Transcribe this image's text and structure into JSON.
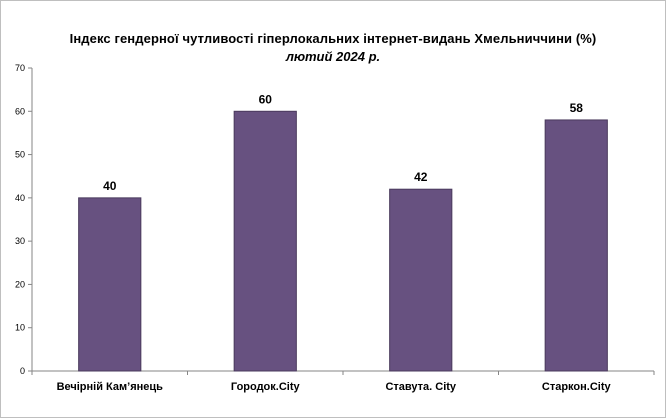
{
  "chart_data": {
    "type": "bar",
    "title": "Індекс гендерної чутливості гіперлокальних інтернет-видань Хмельниччини (%)",
    "subtitle": "лютий 2024 р.",
    "categories": [
      "Вечірній Кам’янець",
      "Городок.City",
      "Ставута. City",
      "Старкон.City"
    ],
    "values": [
      40,
      60,
      42,
      58
    ],
    "data_labels": [
      "40",
      "60",
      "42",
      "58"
    ],
    "yticks": [
      "0",
      "10",
      "20",
      "30",
      "40",
      "50",
      "60",
      "70"
    ],
    "ylim": [
      0,
      70
    ],
    "xlabel": "",
    "ylabel": "",
    "grid": false,
    "legend": false,
    "bar_color": "#675180",
    "bar_edge_color": "#4a3a5c",
    "axis_color": "#868686"
  }
}
